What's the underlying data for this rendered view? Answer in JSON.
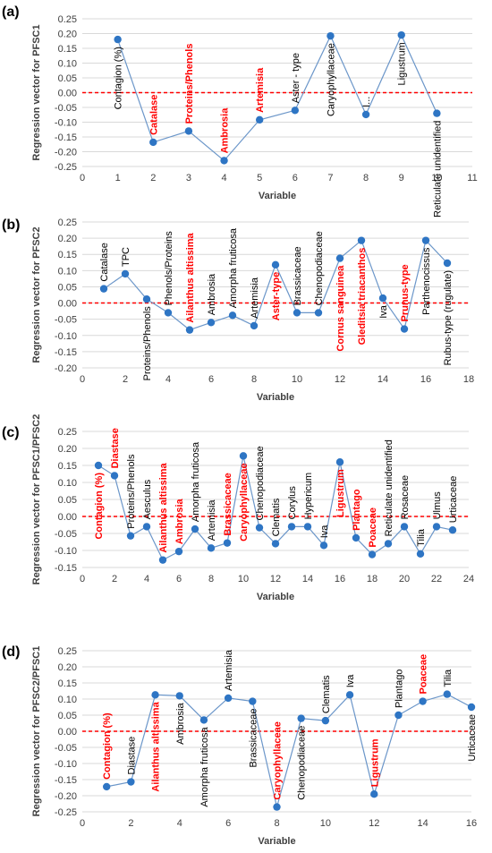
{
  "colors": {
    "line": "#6b96c9",
    "marker": "#2e75c4",
    "zero_line": "#ff0000",
    "highlight_text": "#ff0000",
    "normal_text": "#000000",
    "grid": "#d9d9d9"
  },
  "chart_data": [
    {
      "type": "line",
      "panel_label": "(a)",
      "xlabel": "Variable",
      "ylabel": "Regression vector for PFSC1",
      "xlim": [
        0,
        11
      ],
      "ylim": [
        -0.25,
        0.25
      ],
      "xticks": [
        0,
        1,
        2,
        3,
        4,
        5,
        6,
        7,
        8,
        9,
        10,
        11
      ],
      "yticks": [
        -0.25,
        -0.2,
        -0.15,
        -0.1,
        -0.05,
        0,
        0.05,
        0.1,
        0.15,
        0.2,
        0.25
      ],
      "grid": "horizontal",
      "reference_line": 0,
      "points": [
        {
          "x": 1,
          "y": 0.18,
          "label": "Contagion (%)",
          "highlight": false
        },
        {
          "x": 2,
          "y": -0.168,
          "label": "Catalase",
          "highlight": true
        },
        {
          "x": 3,
          "y": -0.13,
          "label": "Proteins/Phenols",
          "highlight": true
        },
        {
          "x": 4,
          "y": -0.23,
          "label": "Ambrosia",
          "highlight": true
        },
        {
          "x": 5,
          "y": -0.092,
          "label": "Artemisia",
          "highlight": true
        },
        {
          "x": 6,
          "y": -0.06,
          "label": "Aster - type",
          "highlight": false
        },
        {
          "x": 7,
          "y": 0.192,
          "label": "Caryophyllaceae",
          "highlight": false
        },
        {
          "x": 8,
          "y": -0.074,
          "label": "I...",
          "highlight": false
        },
        {
          "x": 9,
          "y": 0.195,
          "label": "Ligustrum",
          "highlight": false
        },
        {
          "x": 10,
          "y": -0.07,
          "label": "Reticulate unidentified",
          "highlight": false
        }
      ]
    },
    {
      "type": "line",
      "panel_label": "(b)",
      "xlabel": "Variable",
      "ylabel": "Regression vector for PFSC2",
      "xlim": [
        0,
        18
      ],
      "ylim": [
        -0.2,
        0.25
      ],
      "xticks": [
        0,
        2,
        4,
        6,
        8,
        10,
        12,
        14,
        16,
        18
      ],
      "yticks": [
        -0.2,
        -0.15,
        -0.1,
        -0.05,
        0,
        0.05,
        0.1,
        0.15,
        0.2,
        0.25
      ],
      "grid": "horizontal",
      "reference_line": 0,
      "points": [
        {
          "x": 1,
          "y": 0.044,
          "label": "Catalase",
          "highlight": false
        },
        {
          "x": 2,
          "y": 0.09,
          "label": "TPC",
          "highlight": false
        },
        {
          "x": 3,
          "y": 0.012,
          "label": "Proteins/Phenols",
          "highlight": false
        },
        {
          "x": 4,
          "y": -0.03,
          "label": "Phenols/Proteins",
          "highlight": false
        },
        {
          "x": 5,
          "y": -0.083,
          "label": "Ailanthus altissima",
          "highlight": true
        },
        {
          "x": 6,
          "y": -0.06,
          "label": "Ambrosia",
          "highlight": false
        },
        {
          "x": 7,
          "y": -0.038,
          "label": "Amorpha fruticosa",
          "highlight": false
        },
        {
          "x": 8,
          "y": -0.07,
          "label": "Artemisia",
          "highlight": false
        },
        {
          "x": 9,
          "y": 0.118,
          "label": "Aster-type",
          "highlight": true
        },
        {
          "x": 10,
          "y": -0.03,
          "label": "Brassicaceae",
          "highlight": false
        },
        {
          "x": 11,
          "y": -0.03,
          "label": "Chenopodiaceae",
          "highlight": false
        },
        {
          "x": 12,
          "y": 0.138,
          "label": "Cornus sanguinea",
          "highlight": true
        },
        {
          "x": 13,
          "y": 0.193,
          "label": "Gleditsia triacanthos",
          "highlight": true
        },
        {
          "x": 14,
          "y": 0.015,
          "label": "Iva",
          "highlight": false
        },
        {
          "x": 15,
          "y": -0.08,
          "label": "Prunus-type",
          "highlight": true
        },
        {
          "x": 16,
          "y": 0.193,
          "label": "Parthenocissus",
          "highlight": false
        },
        {
          "x": 17,
          "y": 0.123,
          "label": "Rubus-type (rugulate)",
          "highlight": false
        }
      ]
    },
    {
      "type": "line",
      "panel_label": "(c)",
      "xlabel": "Variable",
      "ylabel": "Regression vector for PFSC1/PFSC2",
      "xlim": [
        0,
        24
      ],
      "ylim": [
        -0.15,
        0.25
      ],
      "xticks": [
        0,
        2,
        4,
        6,
        8,
        10,
        12,
        14,
        16,
        18,
        20,
        22,
        24
      ],
      "yticks": [
        -0.15,
        -0.1,
        -0.05,
        0,
        0.05,
        0.1,
        0.15,
        0.2,
        0.25
      ],
      "grid": "horizontal",
      "reference_line": 0,
      "points": [
        {
          "x": 1,
          "y": 0.15,
          "label": "Contagion (%)",
          "highlight": true
        },
        {
          "x": 2,
          "y": 0.12,
          "label": "Diastase",
          "highlight": true
        },
        {
          "x": 3,
          "y": -0.057,
          "label": "Proteins/Phenols",
          "highlight": false
        },
        {
          "x": 4,
          "y": -0.03,
          "label": "Aesculus",
          "highlight": false
        },
        {
          "x": 5,
          "y": -0.128,
          "label": "Ailanthus altissima",
          "highlight": true
        },
        {
          "x": 6,
          "y": -0.103,
          "label": "Ambrosia",
          "highlight": true
        },
        {
          "x": 7,
          "y": -0.037,
          "label": "Amorpha fruticosa",
          "highlight": false
        },
        {
          "x": 8,
          "y": -0.093,
          "label": "Artemisia",
          "highlight": false
        },
        {
          "x": 9,
          "y": -0.078,
          "label": "Brassicaceae",
          "highlight": true
        },
        {
          "x": 10,
          "y": 0.178,
          "label": "Caryophyllaceae",
          "highlight": true
        },
        {
          "x": 11,
          "y": -0.033,
          "label": "Chenopodiaceae",
          "highlight": false
        },
        {
          "x": 12,
          "y": -0.08,
          "label": "Clematis",
          "highlight": false
        },
        {
          "x": 13,
          "y": -0.03,
          "label": "Corylus",
          "highlight": false
        },
        {
          "x": 14,
          "y": -0.03,
          "label": "Hypericum",
          "highlight": false
        },
        {
          "x": 15,
          "y": -0.085,
          "label": "Iva",
          "highlight": false
        },
        {
          "x": 16,
          "y": 0.16,
          "label": "Ligustrum",
          "highlight": true
        },
        {
          "x": 17,
          "y": -0.063,
          "label": "Plantago",
          "highlight": true
        },
        {
          "x": 18,
          "y": -0.112,
          "label": "Poaceae",
          "highlight": true
        },
        {
          "x": 19,
          "y": -0.08,
          "label": "Reticulate unidentified",
          "highlight": false
        },
        {
          "x": 20,
          "y": -0.03,
          "label": "Rosaceae",
          "highlight": false
        },
        {
          "x": 21,
          "y": -0.11,
          "label": "Tilia",
          "highlight": false
        },
        {
          "x": 22,
          "y": -0.03,
          "label": "Ulmus",
          "highlight": false
        },
        {
          "x": 23,
          "y": -0.04,
          "label": "Urticaceae",
          "highlight": false
        }
      ]
    },
    {
      "type": "line",
      "panel_label": "(d)",
      "xlabel": "Variable",
      "ylabel": "Regression vector for PFSC2/PFSC1",
      "xlim": [
        0,
        16
      ],
      "ylim": [
        -0.25,
        0.25
      ],
      "xticks": [
        0,
        2,
        4,
        6,
        8,
        10,
        12,
        14,
        16
      ],
      "yticks": [
        -0.25,
        -0.2,
        -0.15,
        -0.1,
        -0.05,
        0,
        0.05,
        0.1,
        0.15,
        0.2,
        0.25
      ],
      "grid": "horizontal",
      "reference_line": 0,
      "points": [
        {
          "x": 1,
          "y": -0.172,
          "label": "Contagion (%)",
          "highlight": true
        },
        {
          "x": 2,
          "y": -0.157,
          "label": "Diastase",
          "highlight": false
        },
        {
          "x": 3,
          "y": 0.113,
          "label": "Ailanthus altissima",
          "highlight": true
        },
        {
          "x": 4,
          "y": 0.11,
          "label": "Ambrosia",
          "highlight": false
        },
        {
          "x": 5,
          "y": 0.035,
          "label": "Amorpha fruticosa",
          "highlight": false
        },
        {
          "x": 6,
          "y": 0.103,
          "label": "Artemisia",
          "highlight": false
        },
        {
          "x": 7,
          "y": 0.093,
          "label": "Brassicaceae",
          "highlight": false
        },
        {
          "x": 8,
          "y": -0.235,
          "label": "Caryophyllaceae",
          "highlight": true
        },
        {
          "x": 9,
          "y": 0.04,
          "label": "Chenopodiaceae",
          "highlight": false
        },
        {
          "x": 10,
          "y": 0.033,
          "label": "Clematis",
          "highlight": false
        },
        {
          "x": 11,
          "y": 0.113,
          "label": "Iva",
          "highlight": false
        },
        {
          "x": 12,
          "y": -0.195,
          "label": "Ligustrum",
          "highlight": true
        },
        {
          "x": 13,
          "y": 0.05,
          "label": "Plantago",
          "highlight": false
        },
        {
          "x": 14,
          "y": 0.093,
          "label": "Poaceae",
          "highlight": true
        },
        {
          "x": 15,
          "y": 0.115,
          "label": "Tilia",
          "highlight": false
        },
        {
          "x": 16,
          "y": 0.075,
          "label": "Urticaceae",
          "highlight": false
        }
      ]
    }
  ]
}
